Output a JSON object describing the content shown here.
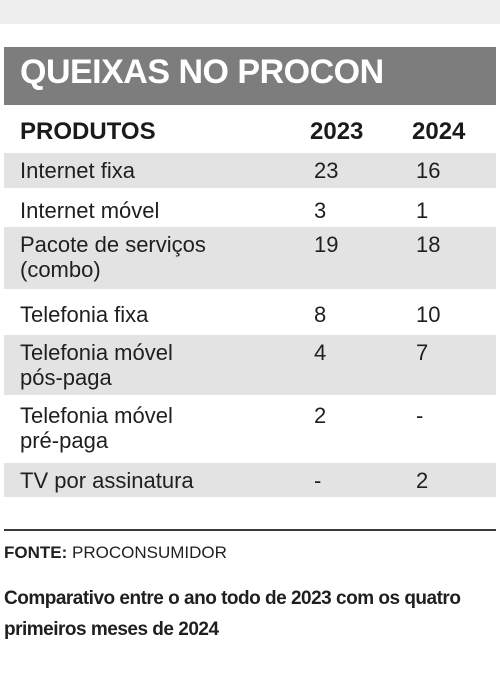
{
  "chart_data": {
    "type": "table",
    "title": "QUEIXAS NO PROCON",
    "columns": [
      "PRODUTOS",
      "2023",
      "2024"
    ],
    "rows": [
      {
        "label": [
          "Internet fixa"
        ],
        "values": [
          "23",
          "16"
        ]
      },
      {
        "label": [
          "Internet móvel"
        ],
        "values": [
          "3",
          "1"
        ]
      },
      {
        "label": [
          "Pacote de serviços",
          "(combo)"
        ],
        "values": [
          "19",
          "18"
        ]
      },
      {
        "label": [
          "Telefonia fixa"
        ],
        "values": [
          "8",
          "10"
        ]
      },
      {
        "label": [
          "Telefonia móvel",
          "pós-paga"
        ],
        "values": [
          "4",
          "7"
        ]
      },
      {
        "label": [
          "Telefonia móvel",
          "pré-paga"
        ],
        "values": [
          "2",
          "-"
        ]
      },
      {
        "label": [
          "TV por assinatura"
        ],
        "values": [
          "-",
          "2"
        ]
      }
    ],
    "source_label": "FONTE:",
    "source": "PROCONSUMIDOR",
    "note": "Comparativo entre o ano todo de 2023 com os quatro primeiros meses de 2024"
  },
  "colors": {
    "title_bar": "#7d7d7d",
    "row_shade": "#e3e3e3",
    "text": "#1f1f1f"
  }
}
